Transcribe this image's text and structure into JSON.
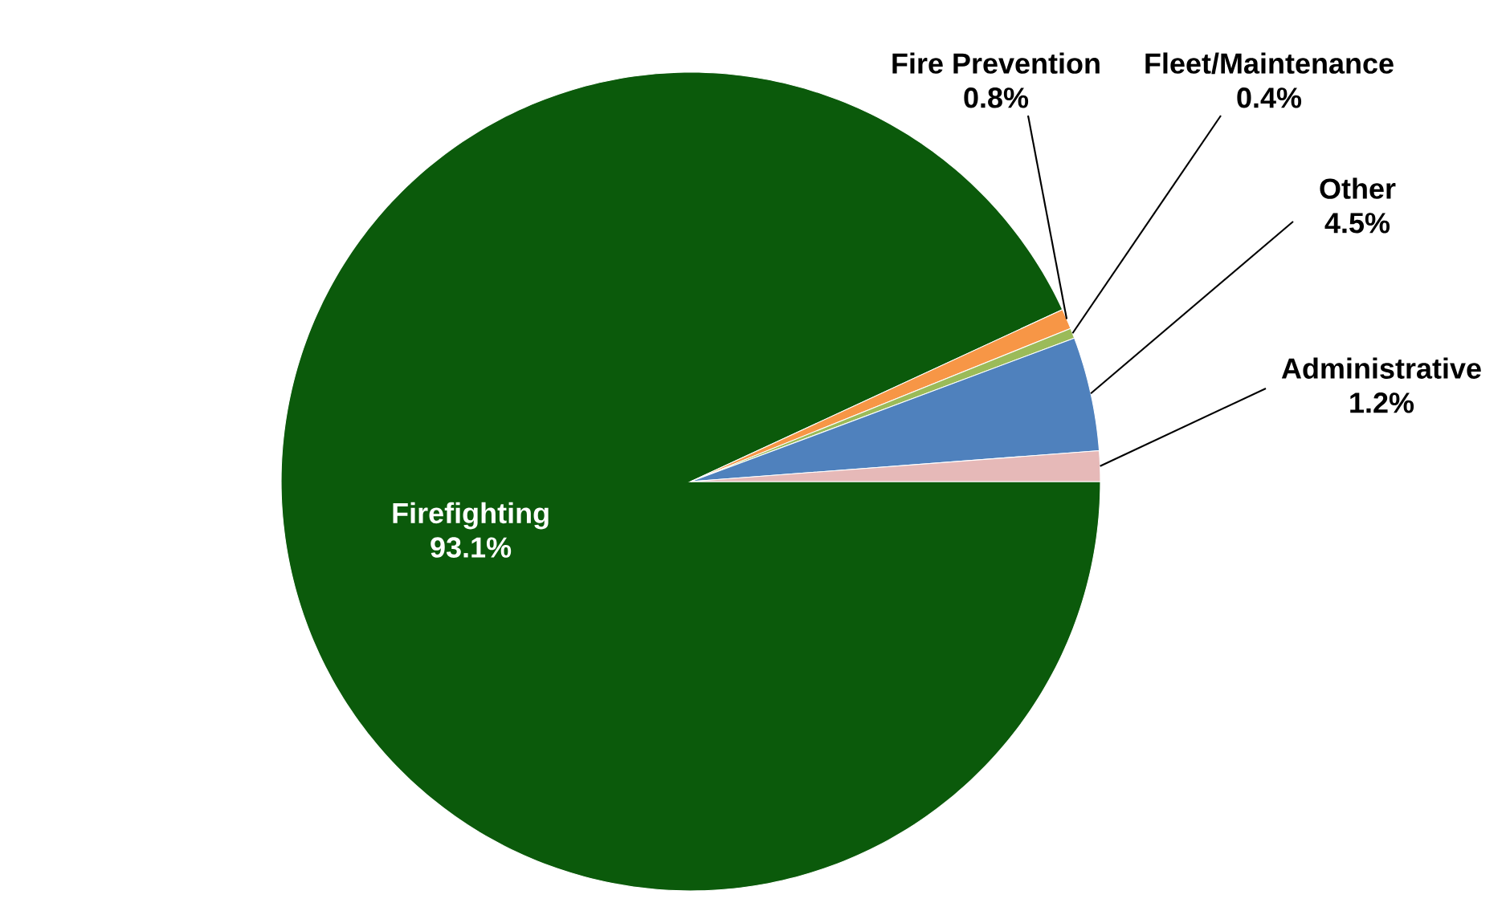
{
  "chart_data": {
    "type": "pie",
    "categories": [
      "Firefighting",
      "Fire Prevention",
      "Fleet/Maintenance",
      "Other",
      "Administrative"
    ],
    "values": [
      93.1,
      0.8,
      0.4,
      4.5,
      1.2
    ],
    "value_labels": [
      "93.1%",
      "0.8%",
      "0.4%",
      "4.5%",
      "1.2%"
    ],
    "data_labels": true,
    "legend": false,
    "colors": [
      "#0b5a0b",
      "#f79646",
      "#9bbb59",
      "#4f81bd",
      "#e6b9b8"
    ]
  }
}
